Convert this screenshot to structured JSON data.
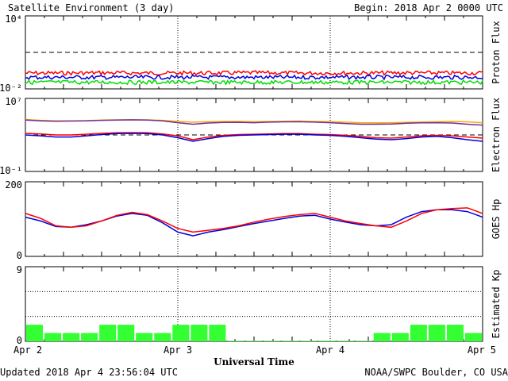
{
  "header": {
    "title": "Satellite Environment (3 day)",
    "begin": "Begin:  2018 Apr 2 0000 UTC"
  },
  "footer": {
    "updated": "Updated 2018 Apr  4 23:56:04 UTC",
    "credit": "NOAA/SWPC Boulder, CO USA"
  },
  "colors": {
    "red": "#ff0000",
    "blue": "#0000dd",
    "green": "#00dd00",
    "orange": "#ffa500",
    "purple": "#7030a0",
    "kp_bar": "#33ff33"
  },
  "chart_data": [
    {
      "panel": "proton",
      "type": "line",
      "ylabel": "Proton Flux",
      "yscale": "log",
      "ylim": [
        0.01,
        10000
      ],
      "y_tick_labels": [
        "10⁴",
        "10⁻²"
      ],
      "x_tick_labels": [
        "Apr 2",
        "Apr 3",
        "Apr 4",
        "Apr 5"
      ],
      "reference_line": 10,
      "noisy": true,
      "series": [
        {
          "color": "red",
          "values": [
            0.2,
            0.2,
            0.21,
            0.2,
            0.2,
            0.2,
            0.21,
            0.2,
            0.2,
            0.2,
            0.21,
            0.2,
            0.2
          ]
        },
        {
          "color": "blue",
          "values": [
            0.09,
            0.09,
            0.09,
            0.09,
            0.09,
            0.09,
            0.09,
            0.09,
            0.09,
            0.09,
            0.09,
            0.09,
            0.09
          ]
        },
        {
          "color": "green",
          "values": [
            0.035,
            0.035,
            0.035,
            0.035,
            0.035,
            0.035,
            0.035,
            0.035,
            0.035,
            0.035,
            0.035,
            0.035,
            0.035
          ]
        }
      ]
    },
    {
      "panel": "electron",
      "type": "line",
      "ylabel": "Electron Flux",
      "yscale": "log",
      "ylim": [
        0.1,
        10000000
      ],
      "y_tick_labels": [
        "10⁷",
        "10⁻¹"
      ],
      "x_tick_labels": [
        "Apr 2",
        "Apr 3",
        "Apr 4",
        "Apr 5"
      ],
      "reference_line": 1000,
      "x": [
        0,
        0.1,
        0.2,
        0.3,
        0.4,
        0.5,
        0.6,
        0.7,
        0.8,
        0.9,
        1.0,
        1.1,
        1.2,
        1.3,
        1.4,
        1.5,
        1.6,
        1.7,
        1.8,
        1.9,
        2.0,
        2.1,
        2.2,
        2.3,
        2.4,
        2.5,
        2.6,
        2.7,
        2.8,
        2.9,
        3.0
      ],
      "series": [
        {
          "color": "orange",
          "values": [
            50000,
            40000,
            35000,
            35000,
            37000,
            42000,
            45000,
            47000,
            45000,
            40000,
            30000,
            25000,
            28000,
            30000,
            30000,
            28000,
            30000,
            32000,
            33000,
            30000,
            28000,
            25000,
            22000,
            21000,
            22000,
            24000,
            26000,
            28000,
            30000,
            27000,
            22000
          ]
        },
        {
          "color": "purple",
          "values": [
            42000,
            35000,
            32000,
            33000,
            35000,
            40000,
            43000,
            45000,
            42000,
            35000,
            22000,
            15000,
            20000,
            23000,
            24000,
            22000,
            25000,
            27000,
            28000,
            25000,
            22000,
            18000,
            15000,
            15000,
            16000,
            19000,
            21000,
            22000,
            20000,
            15000,
            12000
          ]
        },
        {
          "color": "red",
          "values": [
            1500,
            1300,
            1000,
            1000,
            1200,
            1500,
            1700,
            1800,
            1700,
            1300,
            800,
            300,
            600,
            900,
            1100,
            1200,
            1300,
            1400,
            1400,
            1200,
            1100,
            900,
            700,
            500,
            450,
            600,
            800,
            900,
            800,
            600,
            450
          ]
        },
        {
          "color": "blue",
          "values": [
            1000,
            800,
            600,
            600,
            800,
            1100,
            1400,
            1500,
            1400,
            1000,
            500,
            200,
            400,
            700,
            900,
            1000,
            1100,
            1200,
            1200,
            1000,
            900,
            700,
            500,
            350,
            300,
            400,
            600,
            700,
            500,
            300,
            200
          ]
        }
      ]
    },
    {
      "panel": "hp",
      "type": "line",
      "ylabel": "GOES Hp",
      "ylim": [
        0,
        200
      ],
      "y_tick_labels": [
        "200",
        "0"
      ],
      "x_tick_labels": [
        "Apr 2",
        "Apr 3",
        "Apr 4",
        "Apr 5"
      ],
      "x": [
        0,
        0.1,
        0.2,
        0.3,
        0.4,
        0.5,
        0.6,
        0.7,
        0.8,
        0.9,
        1.0,
        1.1,
        1.2,
        1.3,
        1.4,
        1.5,
        1.6,
        1.7,
        1.8,
        1.9,
        2.0,
        2.1,
        2.2,
        2.3,
        2.4,
        2.5,
        2.6,
        2.7,
        2.8,
        2.9,
        3.0
      ],
      "series": [
        {
          "color": "blue",
          "values": [
            105,
            95,
            80,
            78,
            85,
            95,
            108,
            115,
            110,
            90,
            65,
            55,
            65,
            72,
            80,
            88,
            95,
            102,
            108,
            110,
            100,
            92,
            85,
            82,
            85,
            105,
            120,
            125,
            125,
            120,
            105
          ]
        },
        {
          "color": "red",
          "values": [
            115,
            102,
            82,
            78,
            82,
            95,
            110,
            118,
            112,
            95,
            75,
            65,
            70,
            75,
            82,
            92,
            100,
            107,
            112,
            115,
            105,
            95,
            88,
            82,
            78,
            95,
            115,
            125,
            128,
            130,
            115
          ]
        }
      ]
    },
    {
      "panel": "kp",
      "type": "bar",
      "ylabel": "Estimated Kp",
      "ylim": [
        0,
        9
      ],
      "y_tick_labels": [
        "9",
        "0"
      ],
      "x_tick_labels": [
        "Apr 2",
        "Apr 3",
        "Apr 4",
        "Apr 5"
      ],
      "xlabel": "Universal Time",
      "values": [
        2,
        1,
        1,
        1,
        2,
        2,
        1,
        1,
        2,
        2,
        2,
        0.07,
        0.07,
        0.07,
        0.07,
        0.07,
        0.07,
        0.07,
        0.07,
        1,
        1,
        2,
        2,
        2,
        1
      ],
      "colors": [
        "kp_bar",
        "kp_bar",
        "kp_bar",
        "kp_bar",
        "kp_bar",
        "kp_bar",
        "kp_bar",
        "kp_bar",
        "kp_bar",
        "kp_bar",
        "kp_bar",
        "kp_bar",
        "kp_bar",
        "kp_bar",
        "kp_bar",
        "kp_bar",
        "kp_bar",
        "kp_bar",
        "kp_bar",
        "kp_bar",
        "kp_bar",
        "kp_bar",
        "kp_bar",
        "kp_bar",
        "kp_bar"
      ]
    }
  ]
}
